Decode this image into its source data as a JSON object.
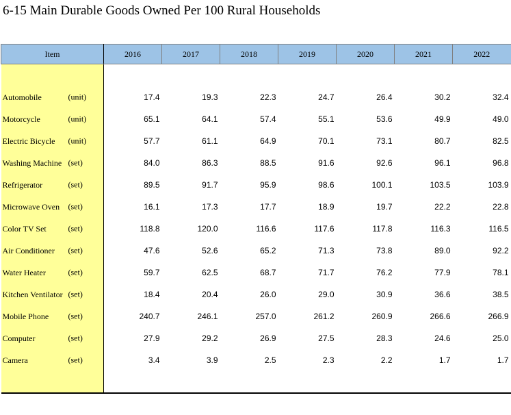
{
  "title": "6-15  Main Durable Goods Owned Per 100 Rural Households",
  "header": {
    "item_label": "Item",
    "years": [
      "2016",
      "2017",
      "2018",
      "2019",
      "2020",
      "2021",
      "2022"
    ]
  },
  "rows": [
    {
      "name": "Automobile",
      "unit": "(unit)",
      "values": [
        "17.4",
        "19.3",
        "22.3",
        "24.7",
        "26.4",
        "30.2",
        "32.4"
      ]
    },
    {
      "name": "Motorcycle",
      "unit": "(unit)",
      "values": [
        "65.1",
        "64.1",
        "57.4",
        "55.1",
        "53.6",
        "49.9",
        "49.0"
      ]
    },
    {
      "name": "Electric Bicycle",
      "unit": "(unit)",
      "values": [
        "57.7",
        "61.1",
        "64.9",
        "70.1",
        "73.1",
        "80.7",
        "82.5"
      ]
    },
    {
      "name": "Washing Machine",
      "unit": "(set)",
      "values": [
        "84.0",
        "86.3",
        "88.5",
        "91.6",
        "92.6",
        "96.1",
        "96.8"
      ]
    },
    {
      "name": "Refrigerator",
      "unit": "(set)",
      "values": [
        "89.5",
        "91.7",
        "95.9",
        "98.6",
        "100.1",
        "103.5",
        "103.9"
      ]
    },
    {
      "name": "Microwave Oven",
      "unit": "(set)",
      "values": [
        "16.1",
        "17.3",
        "17.7",
        "18.9",
        "19.7",
        "22.2",
        "22.8"
      ]
    },
    {
      "name": "Color TV Set",
      "unit": "(set)",
      "values": [
        "118.8",
        "120.0",
        "116.6",
        "117.6",
        "117.8",
        "116.3",
        "116.5"
      ]
    },
    {
      "name": "Air Conditioner",
      "unit": "(set)",
      "values": [
        "47.6",
        "52.6",
        "65.2",
        "71.3",
        "73.8",
        "89.0",
        "92.2"
      ]
    },
    {
      "name": "Water Heater",
      "unit": "(set)",
      "values": [
        "59.7",
        "62.5",
        "68.7",
        "71.7",
        "76.2",
        "77.9",
        "78.1"
      ]
    },
    {
      "name": "Kitchen Ventilator",
      "unit": "(set)",
      "values": [
        "18.4",
        "20.4",
        "26.0",
        "29.0",
        "30.9",
        "36.6",
        "38.5"
      ]
    },
    {
      "name": "Mobile Phone",
      "unit": "(set)",
      "values": [
        "240.7",
        "246.1",
        "257.0",
        "261.2",
        "260.9",
        "266.6",
        "266.9"
      ]
    },
    {
      "name": "Computer",
      "unit": "(set)",
      "values": [
        "27.9",
        "29.2",
        "26.9",
        "27.5",
        "28.3",
        "24.6",
        "25.0"
      ]
    },
    {
      "name": "Camera",
      "unit": "(set)",
      "values": [
        "3.4",
        "3.9",
        "2.5",
        "2.3",
        "2.2",
        "1.7",
        "1.7"
      ]
    }
  ]
}
